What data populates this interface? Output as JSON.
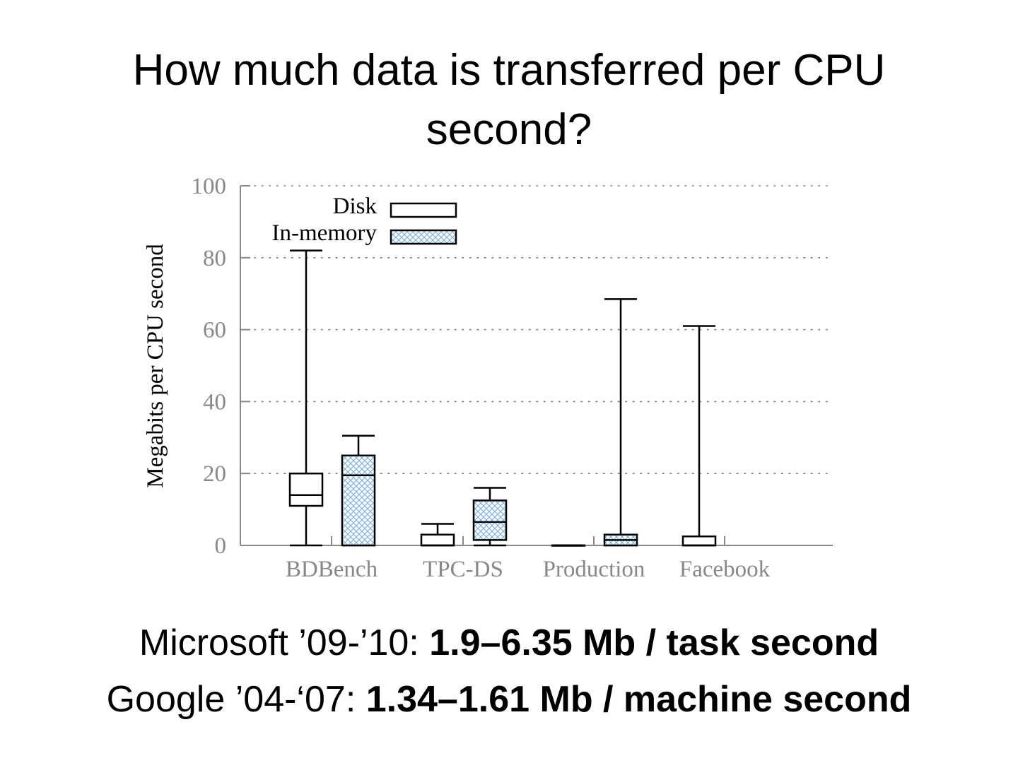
{
  "slide": {
    "title_line1": "How much data is transferred per CPU",
    "title_line2": "second?",
    "notes": [
      {
        "label": "Microsoft ’09-’10: ",
        "value": "1.9–6.35 Mb / task second"
      },
      {
        "label": "Google ’04-‘07: ",
        "value": "1.34–1.61 Mb / machine second"
      }
    ]
  },
  "chart_data": {
    "type": "boxplot",
    "ylabel": "Megabits per CPU second",
    "xlabel": "",
    "ylim": [
      0,
      100
    ],
    "yticks": [
      0,
      20,
      40,
      60,
      80,
      100
    ],
    "grid": "horizontal dotted",
    "legend_position": "top-left",
    "categories": [
      "BDBench",
      "TPC-DS",
      "Production",
      "Facebook"
    ],
    "series": [
      {
        "name": "Disk",
        "pattern": "none",
        "color": "#000000",
        "boxes": [
          {
            "category": "BDBench",
            "min": 0,
            "q1": 11,
            "median": 14,
            "q3": 20,
            "max": 82
          },
          {
            "category": "TPC-DS",
            "min": 0,
            "q1": 0,
            "median": 0,
            "q3": 3,
            "max": 6
          },
          {
            "category": "Production",
            "min": 0,
            "q1": 0,
            "median": 0,
            "q3": 0,
            "max": 0
          },
          {
            "category": "Facebook",
            "min": 0,
            "q1": 0,
            "median": 0,
            "q3": 2.5,
            "max": 61
          }
        ]
      },
      {
        "name": "In-memory",
        "pattern": "crosshatch",
        "color": "#5b9bc0",
        "boxes": [
          {
            "category": "BDBench",
            "min": 0,
            "q1": 0,
            "median": 19.5,
            "q3": 25,
            "max": 30.5
          },
          {
            "category": "TPC-DS",
            "min": 0,
            "q1": 1.5,
            "median": 6.5,
            "q3": 12.5,
            "max": 16
          },
          {
            "category": "Production",
            "min": 0,
            "q1": 0,
            "median": 1.5,
            "q3": 3,
            "max": 68.5
          }
        ]
      }
    ]
  }
}
